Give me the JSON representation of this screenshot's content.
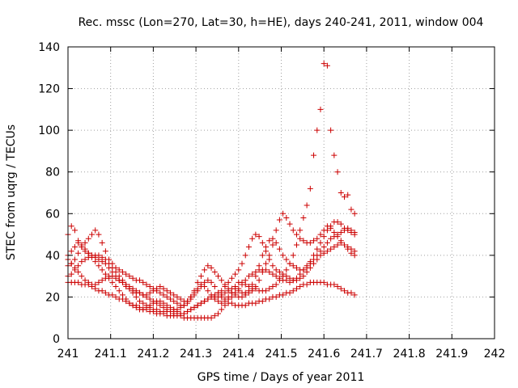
{
  "chart_data": {
    "type": "scatter",
    "title": "Rec. mssc (Lon=270, Lat=30, h=HE), days 240-241, 2011, window 004",
    "xlabel": "GPS time / Days of year 2011",
    "ylabel": "STEC from uqrg / TECUs",
    "xlim": [
      241,
      242
    ],
    "ylim": [
      0,
      140
    ],
    "xticks": [
      "241",
      "241.1",
      "241.2",
      "241.3",
      "241.4",
      "241.5",
      "241.6",
      "241.7",
      "241.8",
      "241.9",
      "242"
    ],
    "xtick_values": [
      241.0,
      241.1,
      241.2,
      241.3,
      241.4,
      241.5,
      241.6,
      241.7,
      241.8,
      241.9,
      242.0
    ],
    "yticks": [
      "0",
      "20",
      "40",
      "60",
      "80",
      "100",
      "120",
      "140"
    ],
    "ytick_values": [
      0,
      20,
      40,
      60,
      80,
      100,
      120,
      140
    ],
    "grid": true,
    "marker": "plus",
    "color": "#cc0000",
    "x_start": 241.0,
    "x_step": 0.008,
    "series": [
      {
        "values": [
          27,
          27,
          27,
          27,
          26,
          26,
          26,
          25,
          24,
          23,
          23,
          22,
          21,
          21,
          20,
          19,
          19,
          18,
          17,
          16,
          16,
          15,
          14,
          14,
          13,
          13,
          12,
          12,
          12,
          11,
          11,
          11,
          11,
          11,
          10,
          10,
          10,
          10,
          10,
          10,
          10,
          10,
          10,
          11,
          12,
          14,
          16,
          17,
          17,
          16,
          16,
          16,
          16,
          17,
          17,
          17,
          18,
          18,
          19,
          19,
          20,
          20,
          21,
          21,
          22,
          22,
          23,
          24,
          25,
          26,
          26,
          27,
          27,
          27,
          27,
          27,
          26,
          26,
          26,
          25,
          24,
          23,
          22,
          22,
          21
        ]
      },
      {
        "values": [
          30,
          31,
          33,
          35,
          37,
          38,
          39,
          40,
          40,
          40,
          39,
          38,
          36,
          34,
          32,
          30,
          28,
          26,
          24,
          22,
          20,
          18,
          17,
          16,
          15,
          14,
          14,
          13,
          13,
          13,
          13,
          14,
          14,
          15,
          16,
          18,
          20,
          22,
          24,
          26,
          27,
          28,
          27,
          25,
          22,
          20,
          19,
          19,
          20,
          22,
          24,
          26,
          28,
          30,
          31,
          32,
          33,
          33,
          33,
          32,
          31,
          30,
          29,
          28,
          28,
          27,
          28,
          29,
          31,
          33,
          35,
          37,
          40,
          43,
          46,
          49,
          52,
          54,
          56,
          56,
          55,
          53,
          52,
          51,
          50
        ]
      },
      {
        "values": [
          35,
          36,
          38,
          41,
          44,
          46,
          48,
          50,
          52,
          50,
          46,
          42,
          38,
          36,
          34,
          33,
          32,
          31,
          30,
          29,
          28,
          28,
          27,
          26,
          25,
          24,
          23,
          22,
          21,
          20,
          19,
          18,
          17,
          16,
          16,
          17,
          19,
          21,
          23,
          25,
          25,
          23,
          21,
          19,
          18,
          17,
          18,
          20,
          22,
          25,
          27,
          27,
          26,
          25,
          24,
          24,
          23,
          23,
          23,
          24,
          25,
          26,
          28,
          30,
          33,
          36,
          40,
          45,
          52,
          58,
          64,
          72,
          88,
          100,
          110,
          132,
          131,
          100,
          88,
          80,
          70,
          68,
          69,
          62,
          60
        ]
      },
      {
        "values": [
          50,
          54,
          52,
          47,
          44,
          42,
          41,
          40,
          39,
          38,
          37,
          36,
          34,
          32,
          30,
          28,
          27,
          25,
          24,
          23,
          22,
          22,
          21,
          21,
          22,
          23,
          24,
          25,
          24,
          23,
          22,
          21,
          20,
          19,
          18,
          18,
          20,
          23,
          27,
          30,
          33,
          35,
          34,
          32,
          30,
          28,
          26,
          24,
          22,
          21,
          20,
          20,
          21,
          23,
          26,
          30,
          35,
          40,
          44,
          47,
          48,
          46,
          43,
          40,
          38,
          36,
          35,
          34,
          33,
          33,
          34,
          36,
          38,
          40,
          42,
          44,
          46,
          48,
          49,
          50,
          51,
          52,
          53,
          52,
          51
        ]
      },
      {
        "values": [
          38,
          36,
          34,
          32,
          30,
          28,
          27,
          26,
          26,
          27,
          28,
          29,
          30,
          30,
          29,
          28,
          27,
          26,
          25,
          24,
          23,
          22,
          21,
          20,
          19,
          18,
          17,
          16,
          15,
          14,
          13,
          12,
          12,
          12,
          12,
          13,
          14,
          15,
          16,
          17,
          18,
          19,
          20,
          21,
          22,
          23,
          25,
          27,
          29,
          31,
          33,
          36,
          40,
          44,
          48,
          50,
          49,
          46,
          42,
          38,
          35,
          33,
          32,
          31,
          30,
          29,
          28,
          28,
          29,
          30,
          32,
          34,
          36,
          38,
          40,
          41,
          42,
          43,
          44,
          45,
          46,
          45,
          44,
          43,
          42
        ]
      },
      {
        "values": [
          40,
          42,
          44,
          46,
          45,
          43,
          41,
          39,
          37,
          35,
          33,
          31,
          29,
          27,
          25,
          23,
          21,
          19,
          17,
          16,
          15,
          14,
          14,
          15,
          16,
          17,
          18,
          18,
          17,
          16,
          15,
          14,
          13,
          12,
          12,
          13,
          14,
          15,
          16,
          17,
          18,
          19,
          20,
          20,
          20,
          21,
          22,
          23,
          24,
          24,
          23,
          22,
          22,
          22,
          23,
          25,
          28,
          32,
          36,
          40,
          45,
          52,
          57,
          60,
          58,
          55,
          52,
          50,
          48,
          47,
          46,
          46,
          47,
          48,
          50,
          52,
          54,
          53,
          51,
          49,
          47,
          45,
          43,
          41,
          40
        ]
      }
    ]
  }
}
